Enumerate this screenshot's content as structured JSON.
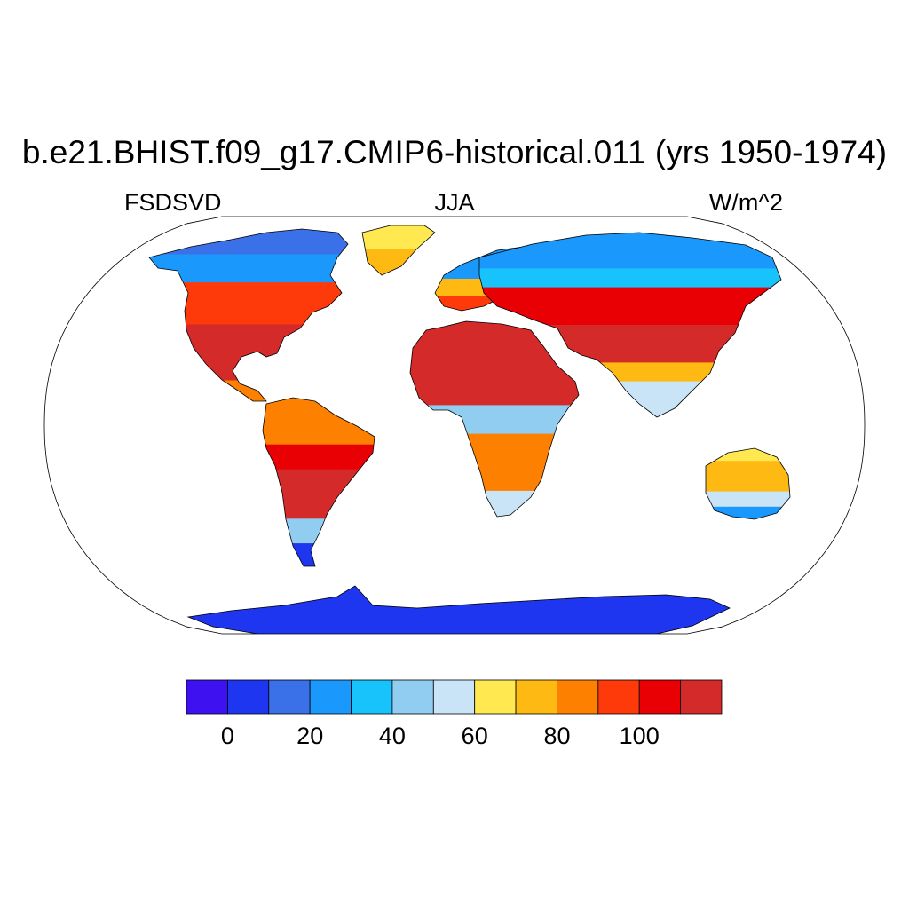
{
  "title": "b.e21.BHIST.f09_g17.CMIP6-historical.011 (yrs 1950-1974)",
  "left_label": "FSDSVD",
  "center_label": "JJA",
  "right_label": "W/m^2",
  "projection": "Robinson",
  "colorbar": {
    "colors": [
      "#3e12f0",
      "#1e36ef",
      "#3a70e8",
      "#1b98fc",
      "#18c2fb",
      "#90cdf0",
      "#c8e4f6",
      "#ffe850",
      "#feba12",
      "#fd8000",
      "#fe3a0a",
      "#e80004",
      "#d42a2a"
    ],
    "ticks": [
      "0",
      "20",
      "40",
      "60",
      "80",
      "100"
    ],
    "levels": [
      -10,
      0,
      10,
      20,
      30,
      40,
      50,
      60,
      70,
      80,
      90,
      100,
      110,
      120
    ]
  },
  "regions": [
    {
      "name": "North America",
      "bands": [
        "#3a70e8",
        "#1b98fc",
        "#fe3a0a",
        "#d42a2a",
        "#fd8000"
      ]
    },
    {
      "name": "Greenland",
      "bands": [
        "#ffe850",
        "#feba12"
      ]
    },
    {
      "name": "South America",
      "bands": [
        "#fd8000",
        "#e80004",
        "#d42a2a",
        "#90cdf0",
        "#1e36ef"
      ]
    },
    {
      "name": "Europe",
      "bands": [
        "#1b98fc",
        "#feba12",
        "#fe3a0a"
      ]
    },
    {
      "name": "Africa",
      "bands": [
        "#d42a2a",
        "#90cdf0",
        "#fd8000",
        "#c8e4f6"
      ]
    },
    {
      "name": "Asia",
      "bands": [
        "#1b98fc",
        "#18c2fb",
        "#e80004",
        "#d42a2a",
        "#feba12",
        "#c8e4f6"
      ]
    },
    {
      "name": "Australia",
      "bands": [
        "#ffe850",
        "#feba12",
        "#c8e4f6",
        "#1b98fc"
      ]
    },
    {
      "name": "Antarctica",
      "bands": [
        "#1e36ef"
      ]
    }
  ]
}
